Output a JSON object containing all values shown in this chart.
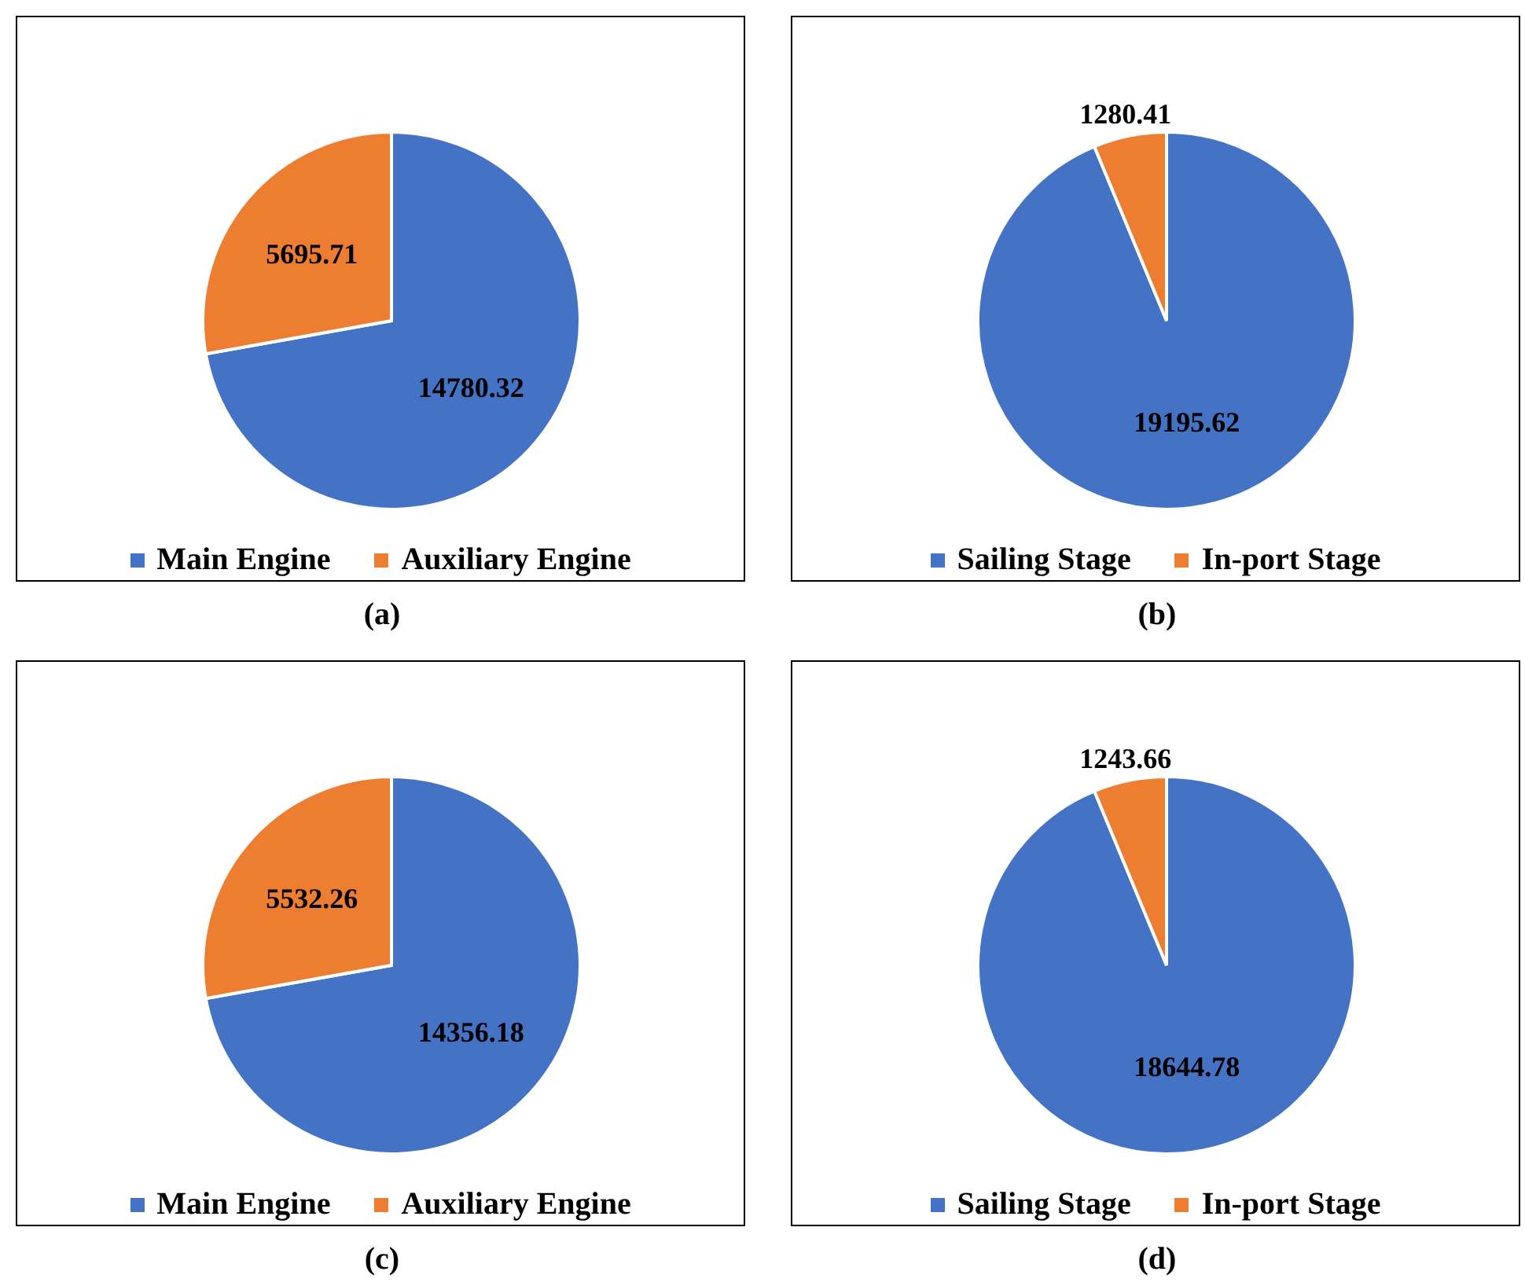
{
  "chart_data": [
    {
      "type": "pie",
      "categories": [
        "Main Engine",
        "Auxiliary Engine"
      ],
      "values": [
        14780.32,
        5695.71
      ],
      "colors": [
        "#4472c4",
        "#ed7d31"
      ],
      "data_labels": true,
      "legend": "bottom",
      "annotations": [
        "(a)"
      ]
    },
    {
      "type": "pie",
      "categories": [
        "Sailing Stage",
        "In-port Stage"
      ],
      "values": [
        19195.62,
        1280.41
      ],
      "colors": [
        "#4472c4",
        "#ed7d31"
      ],
      "data_labels": true,
      "legend": "bottom",
      "annotations": [
        "(b)"
      ]
    },
    {
      "type": "pie",
      "categories": [
        "Main Engine",
        "Auxiliary Engine"
      ],
      "values": [
        14356.18,
        5532.26
      ],
      "colors": [
        "#4472c4",
        "#ed7d31"
      ],
      "data_labels": true,
      "legend": "bottom",
      "annotations": [
        "(c)"
      ]
    },
    {
      "type": "pie",
      "categories": [
        "Sailing Stage",
        "In-port Stage"
      ],
      "values": [
        18644.78,
        1243.66
      ],
      "colors": [
        "#4472c4",
        "#ed7d31"
      ],
      "data_labels": true,
      "legend": "bottom",
      "annotations": [
        "(d)"
      ]
    }
  ]
}
